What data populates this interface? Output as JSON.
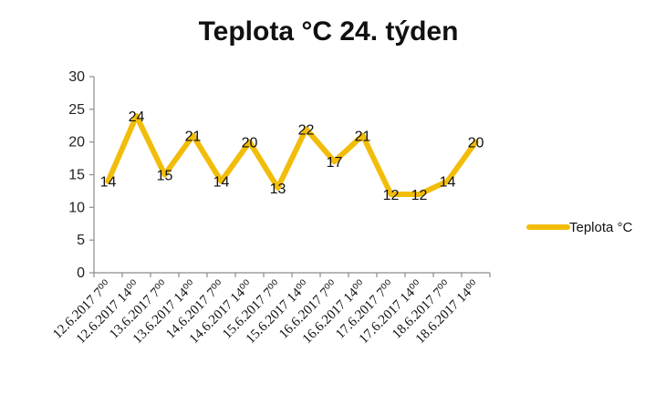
{
  "chart_data": {
    "type": "line",
    "title": "Teplota °C 24. týden",
    "xlabel": "",
    "ylabel": "",
    "ylim": [
      0,
      30
    ],
    "yticks": [
      0,
      5,
      10,
      15,
      20,
      25,
      30
    ],
    "grid": false,
    "legend_position": "right",
    "color": "#f2bd0a",
    "categories": [
      "12.6.2017 7⁰⁰",
      "12.6.2017 14⁰⁰",
      "13.6.2017 7⁰⁰",
      "13.6.2017 14⁰⁰",
      "14.6.2017 7⁰⁰",
      "14.6.2017 14⁰⁰",
      "15.6.2017 7⁰⁰",
      "15.6.2017 14⁰⁰",
      "16.6.2017 7⁰⁰",
      "16.6.2017 14⁰⁰",
      "17.6.2017 7⁰⁰",
      "17.6.2017 14⁰⁰",
      "18.6.2017 7⁰⁰",
      "18.6.2017 14⁰⁰"
    ],
    "series": [
      {
        "name": "Teplota °C",
        "values": [
          14,
          24,
          15,
          21,
          14,
          20,
          13,
          22,
          17,
          21,
          12,
          12,
          14,
          20
        ]
      }
    ]
  }
}
